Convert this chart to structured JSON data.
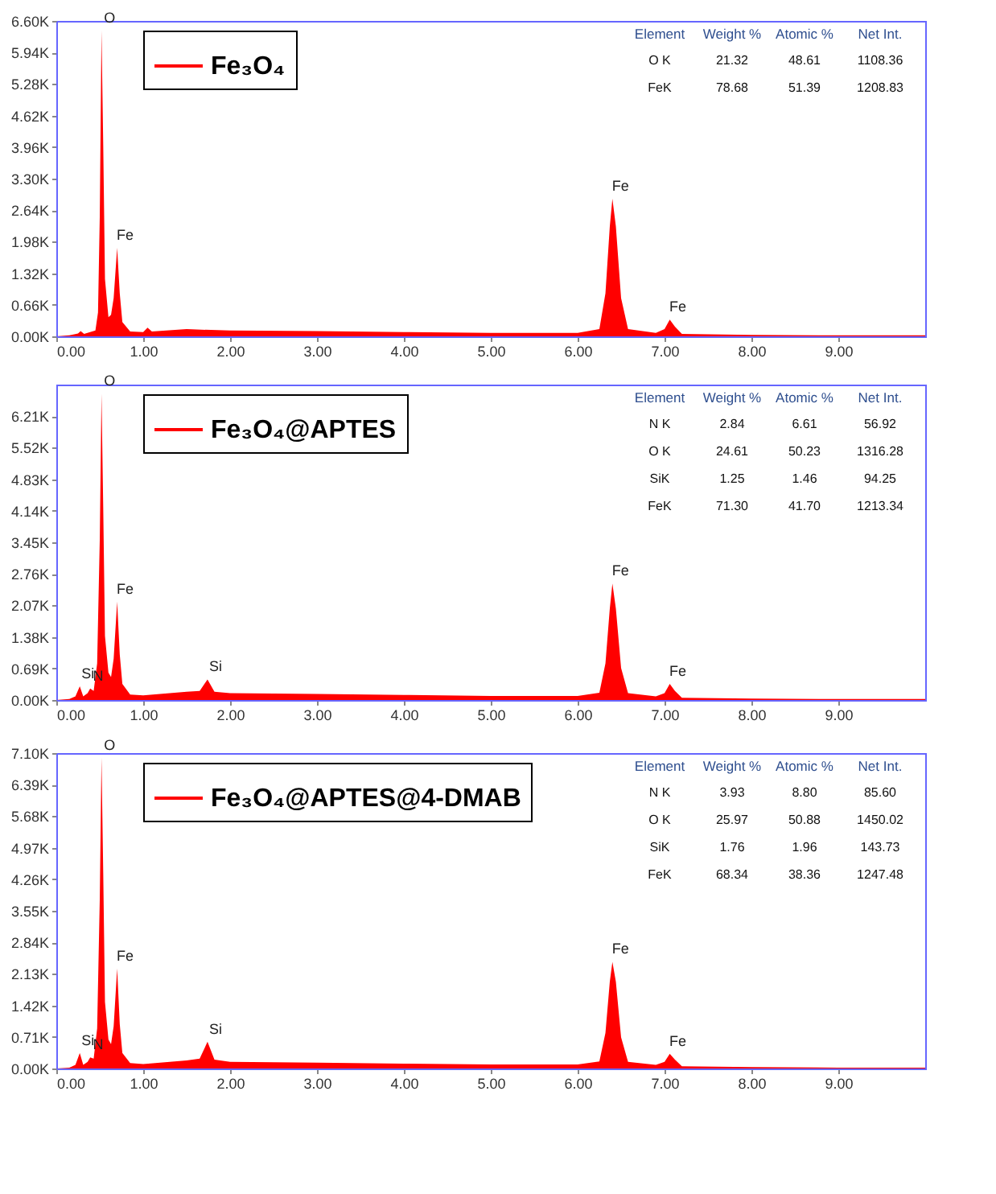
{
  "chart_data": [
    {
      "type": "area",
      "xlim": [
        0,
        10
      ],
      "ylim": [
        0,
        6600
      ],
      "grid": false,
      "legend": "top",
      "xticks": [
        {
          "value": 0,
          "label": "0.00"
        },
        {
          "value": 1,
          "label": "1.00"
        },
        {
          "value": 2,
          "label": "2.00"
        },
        {
          "value": 3,
          "label": "3.00"
        },
        {
          "value": 4,
          "label": "4.00"
        },
        {
          "value": 5,
          "label": "5.00"
        },
        {
          "value": 6,
          "label": "6.00"
        },
        {
          "value": 7,
          "label": "7.00"
        },
        {
          "value": 8,
          "label": "8.00"
        },
        {
          "value": 9,
          "label": "9.00"
        }
      ],
      "yticks": [
        {
          "value": 0,
          "label": "0.00K"
        },
        {
          "value": 660,
          "label": "0.66K"
        },
        {
          "value": 1320,
          "label": "1.32K"
        },
        {
          "value": 1980,
          "label": "1.98K"
        },
        {
          "value": 2640,
          "label": "2.64K"
        },
        {
          "value": 3300,
          "label": "3.30K"
        },
        {
          "value": 3960,
          "label": "3.96K"
        },
        {
          "value": 4620,
          "label": "4.62K"
        },
        {
          "value": 5280,
          "label": "5.28K"
        },
        {
          "value": 5940,
          "label": "5.94K"
        },
        {
          "value": 6600,
          "label": "6.60K"
        }
      ],
      "series": [
        {
          "name": "Fe₃O₄",
          "color": "#ff0000",
          "x": [
            0.0,
            0.15,
            0.25,
            0.28,
            0.32,
            0.45,
            0.48,
            0.5,
            0.52,
            0.54,
            0.56,
            0.6,
            0.63,
            0.66,
            0.7,
            0.73,
            0.76,
            0.85,
            1.0,
            1.05,
            1.1,
            1.5,
            2.0,
            3.0,
            4.0,
            5.0,
            6.0,
            6.25,
            6.32,
            6.37,
            6.4,
            6.44,
            6.5,
            6.58,
            6.9,
            7.0,
            7.06,
            7.12,
            7.2,
            8.0,
            9.0,
            10.0
          ],
          "values": [
            0,
            20,
            60,
            110,
            50,
            120,
            500,
            2500,
            6400,
            4000,
            1200,
            400,
            450,
            800,
            1850,
            900,
            300,
            100,
            90,
            180,
            100,
            150,
            120,
            110,
            90,
            70,
            70,
            150,
            900,
            2300,
            2880,
            2300,
            800,
            150,
            70,
            150,
            350,
            200,
            50,
            30,
            20,
            20
          ]
        }
      ],
      "annotations": [
        {
          "text": "O",
          "x": 0.52,
          "y": 6400
        },
        {
          "text": "Fe",
          "x": 0.7,
          "y": 1850
        },
        {
          "text": "Fe",
          "x": 6.4,
          "y": 2880
        },
        {
          "text": "Fe",
          "x": 7.06,
          "y": 350
        },
        "Element",
        "Weight %",
        "Atomic %",
        "Net Int.",
        "O K",
        "21.32",
        "48.61",
        "1108.36",
        "FeK",
        "78.68",
        "51.39",
        "1208.83"
      ]
    },
    {
      "type": "area",
      "xlim": [
        0,
        10
      ],
      "ylim": [
        0,
        6900
      ],
      "grid": false,
      "legend": "top",
      "xticks": [
        {
          "value": 0,
          "label": "0.00"
        },
        {
          "value": 1,
          "label": "1.00"
        },
        {
          "value": 2,
          "label": "2.00"
        },
        {
          "value": 3,
          "label": "3.00"
        },
        {
          "value": 4,
          "label": "4.00"
        },
        {
          "value": 5,
          "label": "5.00"
        },
        {
          "value": 6,
          "label": "6.00"
        },
        {
          "value": 7,
          "label": "7.00"
        },
        {
          "value": 8,
          "label": "8.00"
        },
        {
          "value": 9,
          "label": "9.00"
        }
      ],
      "yticks": [
        {
          "value": 0,
          "label": "0.00K"
        },
        {
          "value": 690,
          "label": "0.69K"
        },
        {
          "value": 1380,
          "label": "1.38K"
        },
        {
          "value": 2070,
          "label": "2.07K"
        },
        {
          "value": 2760,
          "label": "2.76K"
        },
        {
          "value": 3450,
          "label": "3.45K"
        },
        {
          "value": 4140,
          "label": "4.14K"
        },
        {
          "value": 4830,
          "label": "4.83K"
        },
        {
          "value": 5520,
          "label": "5.52K"
        },
        {
          "value": 6210,
          "label": "6.21K"
        }
      ],
      "series": [
        {
          "name": "Fe₃O₄@APTES",
          "color": "#ff0000",
          "x": [
            0.0,
            0.15,
            0.22,
            0.27,
            0.31,
            0.36,
            0.39,
            0.43,
            0.47,
            0.5,
            0.52,
            0.54,
            0.56,
            0.6,
            0.63,
            0.66,
            0.7,
            0.73,
            0.76,
            0.85,
            1.0,
            1.5,
            1.65,
            1.74,
            1.82,
            2.0,
            3.0,
            4.0,
            5.0,
            6.0,
            6.25,
            6.32,
            6.37,
            6.4,
            6.44,
            6.5,
            6.58,
            6.9,
            7.0,
            7.06,
            7.12,
            7.2,
            8.0,
            9.0,
            10.0
          ],
          "values": [
            0,
            20,
            80,
            300,
            80,
            150,
            250,
            200,
            800,
            3500,
            6700,
            4200,
            1400,
            600,
            500,
            900,
            2150,
            1000,
            350,
            120,
            100,
            180,
            200,
            450,
            180,
            150,
            130,
            110,
            90,
            90,
            160,
            800,
            2000,
            2550,
            2000,
            700,
            150,
            80,
            150,
            350,
            200,
            50,
            30,
            20,
            20
          ]
        }
      ],
      "annotations": [
        {
          "text": "O",
          "x": 0.52,
          "y": 6700
        },
        {
          "text": "Fe",
          "x": 0.7,
          "y": 2150
        },
        {
          "text": "Si",
          "x": 1.74,
          "y": 450
        },
        {
          "text": "Fe",
          "x": 6.4,
          "y": 2550
        },
        {
          "text": "Fe",
          "x": 7.06,
          "y": 350
        },
        {
          "text": "Si",
          "x": 0.27,
          "y": 300
        },
        {
          "text": "N",
          "x": 0.39,
          "y": 250
        },
        "Element",
        "Weight %",
        "Atomic %",
        "Net Int.",
        "N K",
        "2.84",
        "6.61",
        "56.92",
        "O K",
        "24.61",
        "50.23",
        "1316.28",
        "SiK",
        "1.25",
        "1.46",
        "94.25",
        "FeK",
        "71.30",
        "41.70",
        "1213.34"
      ]
    },
    {
      "type": "area",
      "xlim": [
        0,
        10
      ],
      "ylim": [
        0,
        7100
      ],
      "grid": false,
      "legend": "top",
      "xticks": [
        {
          "value": 0,
          "label": "0.00"
        },
        {
          "value": 1,
          "label": "1.00"
        },
        {
          "value": 2,
          "label": "2.00"
        },
        {
          "value": 3,
          "label": "3.00"
        },
        {
          "value": 4,
          "label": "4.00"
        },
        {
          "value": 5,
          "label": "5.00"
        },
        {
          "value": 6,
          "label": "6.00"
        },
        {
          "value": 7,
          "label": "7.00"
        },
        {
          "value": 8,
          "label": "8.00"
        },
        {
          "value": 9,
          "label": "9.00"
        }
      ],
      "yticks": [
        {
          "value": 0,
          "label": "0.00K"
        },
        {
          "value": 710,
          "label": "0.71K"
        },
        {
          "value": 1420,
          "label": "1.42K"
        },
        {
          "value": 2130,
          "label": "2.13K"
        },
        {
          "value": 2840,
          "label": "2.84K"
        },
        {
          "value": 3550,
          "label": "3.55K"
        },
        {
          "value": 4260,
          "label": "4.26K"
        },
        {
          "value": 4970,
          "label": "4.97K"
        },
        {
          "value": 5680,
          "label": "5.68K"
        },
        {
          "value": 6390,
          "label": "6.39K"
        },
        {
          "value": 7100,
          "label": "7.10K"
        }
      ],
      "series": [
        {
          "name": "Fe₃O₄@APTES@4-DMAB",
          "color": "#ff0000",
          "x": [
            0.0,
            0.15,
            0.22,
            0.27,
            0.31,
            0.36,
            0.39,
            0.43,
            0.47,
            0.5,
            0.52,
            0.54,
            0.56,
            0.6,
            0.63,
            0.66,
            0.7,
            0.73,
            0.76,
            0.85,
            1.0,
            1.5,
            1.65,
            1.74,
            1.82,
            2.0,
            3.0,
            4.0,
            5.0,
            6.0,
            6.25,
            6.32,
            6.37,
            6.4,
            6.44,
            6.5,
            6.58,
            6.9,
            7.0,
            7.06,
            7.12,
            7.2,
            8.0,
            9.0,
            10.0
          ],
          "values": [
            0,
            20,
            80,
            350,
            80,
            150,
            250,
            220,
            900,
            3800,
            7000,
            4400,
            1500,
            650,
            550,
            950,
            2250,
            1000,
            350,
            120,
            100,
            180,
            220,
            600,
            200,
            150,
            130,
            110,
            90,
            90,
            160,
            800,
            1950,
            2400,
            1950,
            700,
            150,
            80,
            150,
            330,
            200,
            50,
            30,
            20,
            20
          ]
        }
      ],
      "annotations": [
        {
          "text": "O",
          "x": 0.52,
          "y": 7000
        },
        {
          "text": "Fe",
          "x": 0.7,
          "y": 2250
        },
        {
          "text": "Si",
          "x": 1.74,
          "y": 600
        },
        {
          "text": "Fe",
          "x": 6.4,
          "y": 2400
        },
        {
          "text": "Fe",
          "x": 7.06,
          "y": 330
        },
        {
          "text": "Si",
          "x": 0.27,
          "y": 350
        },
        {
          "text": "N",
          "x": 0.39,
          "y": 250
        },
        "Element",
        "Weight %",
        "Atomic %",
        "Net Int.",
        "N K",
        "3.93",
        "8.80",
        "85.60",
        "O K",
        "25.97",
        "50.88",
        "1450.02",
        "SiK",
        "1.76",
        "1.96",
        "143.73",
        "FeK",
        "68.34",
        "38.36",
        "1247.48"
      ]
    }
  ]
}
